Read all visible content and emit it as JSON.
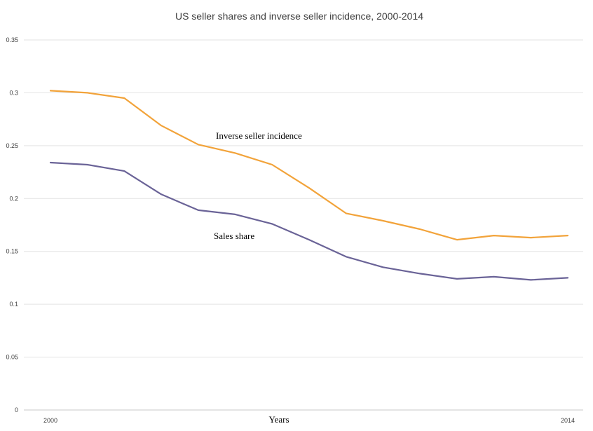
{
  "chart_data": {
    "type": "line",
    "title": "US seller shares and inverse seller incidence, 2000-2014",
    "xlabel": "Years",
    "ylabel": "",
    "x": [
      2000,
      2001,
      2002,
      2003,
      2004,
      2005,
      2006,
      2007,
      2008,
      2009,
      2010,
      2011,
      2012,
      2013,
      2014
    ],
    "x_tick_labels": [
      "2000",
      "2014"
    ],
    "y_tick_labels": [
      "0",
      "0.05",
      "0.1",
      "0.15",
      "0.2",
      "0.25",
      "0.3",
      "0.35"
    ],
    "ylim": [
      0,
      0.35
    ],
    "grid": true,
    "series": [
      {
        "name": "Inverse seller incidence",
        "color": "#f2a33a",
        "values": [
          0.302,
          0.3,
          0.295,
          0.269,
          0.251,
          0.243,
          0.232,
          0.21,
          0.186,
          0.179,
          0.171,
          0.161,
          0.165,
          0.163,
          0.165
        ]
      },
      {
        "name": "Sales share",
        "color": "#6a6397",
        "values": [
          0.234,
          0.232,
          0.226,
          0.204,
          0.189,
          0.185,
          0.176,
          0.161,
          0.145,
          0.135,
          0.129,
          0.124,
          0.126,
          0.123,
          0.125
        ]
      }
    ]
  }
}
